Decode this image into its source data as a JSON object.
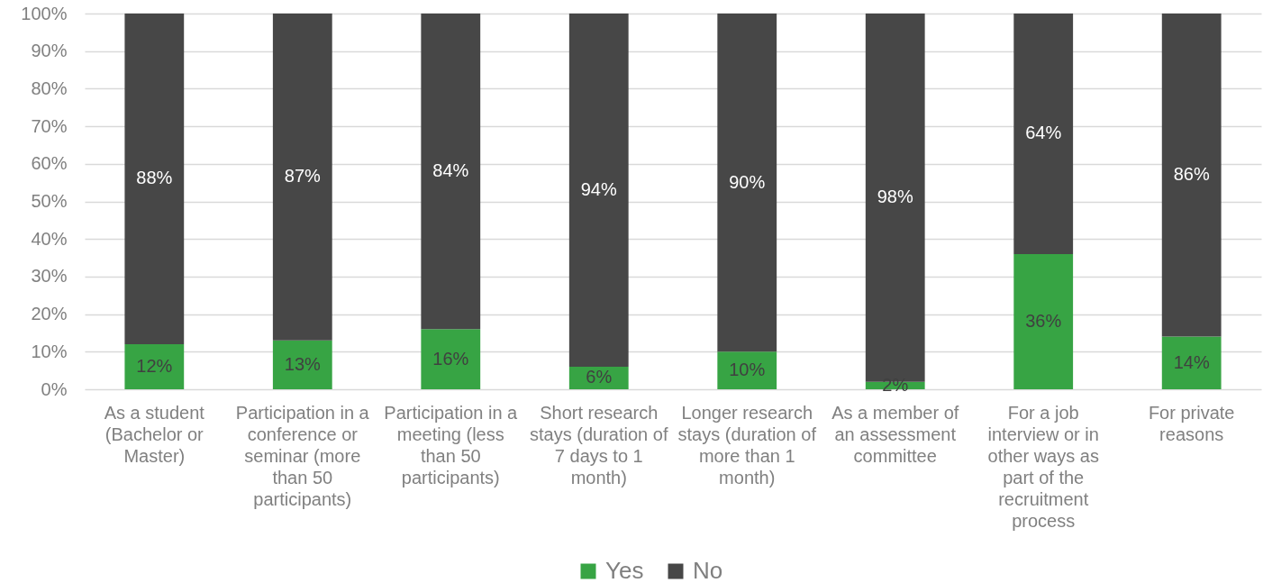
{
  "chart_data": {
    "type": "bar",
    "stacked": true,
    "categories": [
      "As a student (Bachelor or Master)",
      "Participation in a conference or seminar (more than 50 participants)",
      "Participation in a meeting (less than 50 participants)",
      "Short research stays (duration of 7 days to 1 month)",
      "Longer research stays (duration of more than 1 month)",
      "As a member of an assessment committee",
      "For a job interview or in other ways as part of the recruitment process",
      "For private reasons"
    ],
    "series": [
      {
        "name": "Yes",
        "color": "#37a444",
        "values": [
          12,
          13,
          16,
          6,
          10,
          2,
          36,
          14
        ],
        "value_labels": [
          "12%",
          "13%",
          "16%",
          "6%",
          "10%",
          "2%",
          "36%",
          "14%"
        ]
      },
      {
        "name": "No",
        "color": "#474747",
        "values": [
          88,
          87,
          84,
          94,
          90,
          98,
          64,
          86
        ],
        "value_labels": [
          "88%",
          "87%",
          "84%",
          "94%",
          "90%",
          "98%",
          "64%",
          "86%"
        ]
      }
    ],
    "ylim": [
      0,
      100
    ],
    "yticks": [
      {
        "value": 0,
        "label": "0%"
      },
      {
        "value": 10,
        "label": "10%"
      },
      {
        "value": 20,
        "label": "20%"
      },
      {
        "value": 30,
        "label": "30%"
      },
      {
        "value": 40,
        "label": "40%"
      },
      {
        "value": 50,
        "label": "50%"
      },
      {
        "value": 60,
        "label": "60%"
      },
      {
        "value": 70,
        "label": "70%"
      },
      {
        "value": 80,
        "label": "80%"
      },
      {
        "value": 90,
        "label": "90%"
      },
      {
        "value": 100,
        "label": "100%"
      }
    ],
    "grid": "y",
    "legend": "bottom"
  }
}
